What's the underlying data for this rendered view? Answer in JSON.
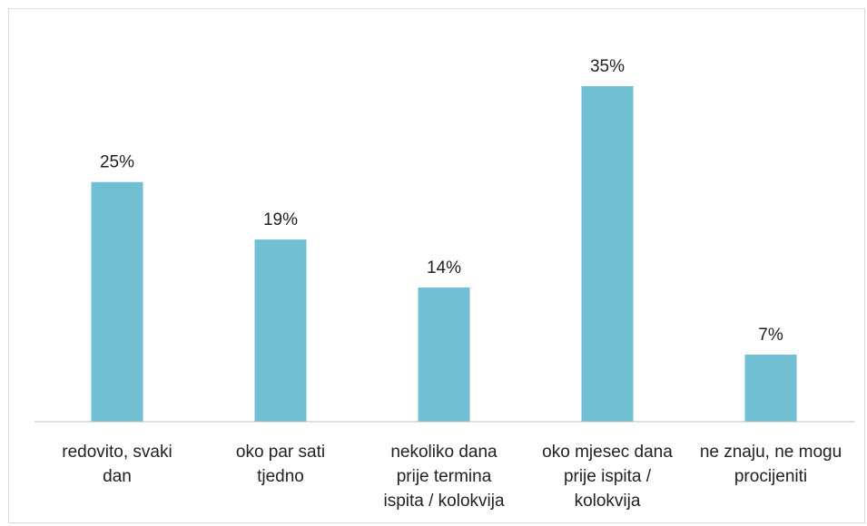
{
  "chart_data": {
    "type": "bar",
    "categories": [
      [
        "redovito, svaki",
        "dan"
      ],
      [
        "oko par sati",
        "tjedno"
      ],
      [
        "nekoliko dana",
        "prije termina",
        "ispita / kolokvija"
      ],
      [
        "oko mjesec dana",
        "prije ispita /",
        "kolokvija"
      ],
      [
        "ne znaju, ne mogu",
        "procijeniti"
      ]
    ],
    "values": [
      25,
      19,
      14,
      35,
      7
    ],
    "value_labels": [
      "25%",
      "19%",
      "14%",
      "35%",
      "7%"
    ],
    "value_suffix": "%",
    "bar_color": "#70bfd3",
    "axis_color": "#bfbfbf",
    "title": "",
    "xlabel": "",
    "ylabel": "",
    "ylim": [
      0,
      35
    ],
    "grid": false,
    "legend": "none"
  }
}
